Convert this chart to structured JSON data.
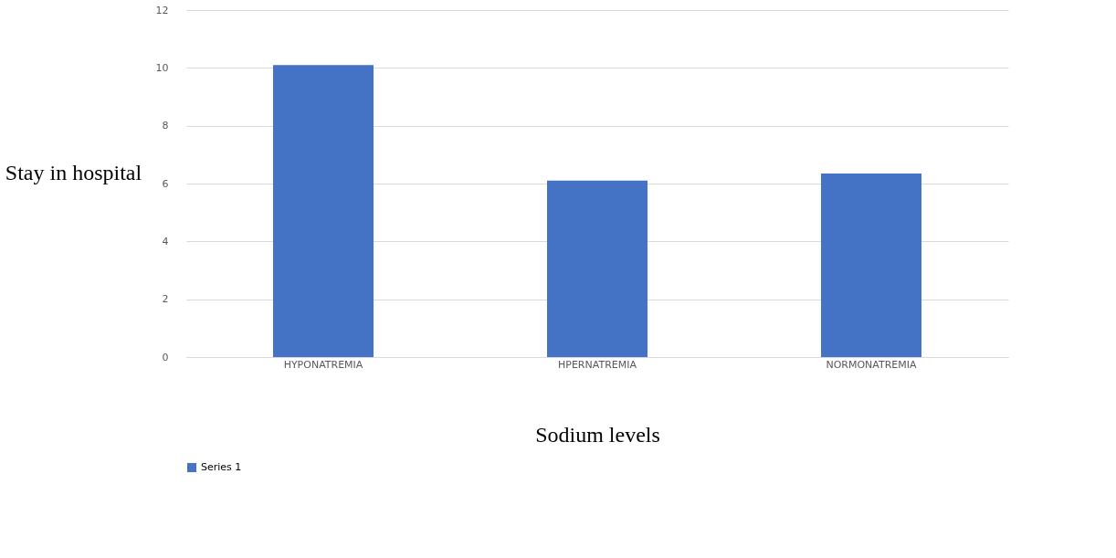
{
  "chart_data": {
    "type": "bar",
    "xlabel": "Sodium levels",
    "ylabel": "Stay in hospital",
    "categories": [
      "HYPONATREMIA",
      "HPERNATREMIA",
      "NORMONATREMIA"
    ],
    "series": [
      {
        "name": "Series 1",
        "color": "#4472c4",
        "values": [
          10.1,
          6.1,
          6.35
        ]
      }
    ],
    "ylim": [
      0,
      12
    ],
    "yticks": [
      0,
      2,
      4,
      6,
      8,
      10,
      12
    ],
    "grid": "y",
    "legend": "bottom"
  }
}
